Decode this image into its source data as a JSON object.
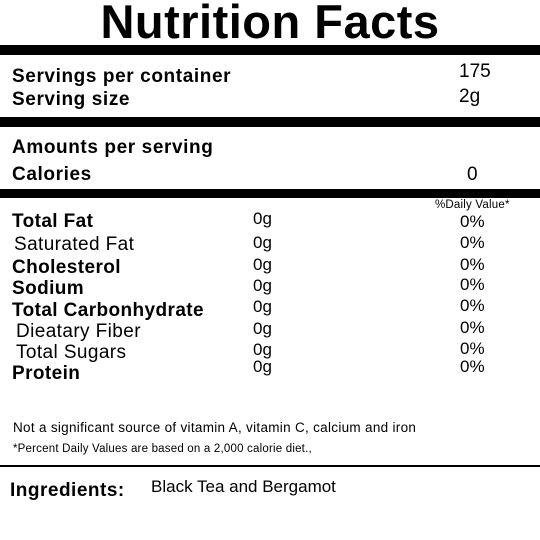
{
  "title": "Nutrition Facts",
  "servings": {
    "per_container_label": "Servings per container",
    "per_container_value": "175",
    "size_label": "Serving size",
    "size_value": "2g"
  },
  "amounts": {
    "header": "Amounts per serving",
    "calories_label": "Calories",
    "calories_value": "0"
  },
  "daily_value_header": "%Daily Value*",
  "nutrients": [
    {
      "name": "Total Fat",
      "amount": "0g",
      "dv": "0%"
    },
    {
      "name": "Saturated Fat",
      "amount": "0g",
      "dv": "0%"
    },
    {
      "name": "Cholesterol",
      "amount": "0g",
      "dv": "0%"
    },
    {
      "name": "Sodium",
      "amount": "0g",
      "dv": "0%"
    },
    {
      "name": "Total Carbonhydrate",
      "amount": "0g",
      "dv": "0%"
    },
    {
      "name": "Dieatary Fiber",
      "amount": "0g",
      "dv": "0%"
    },
    {
      "name": "Total Sugars",
      "amount": "0g",
      "dv": "0%"
    },
    {
      "name": "Protein",
      "amount": "0g",
      "dv": "0%"
    }
  ],
  "footnotes": {
    "vitamins": "Not a significant source of vitamin A, vitamin C, calcium and iron",
    "percent": "*Percent Daily Values are based on a 2,000 calorie diet.,"
  },
  "ingredients": {
    "label": "Ingredients:",
    "value": "Black Tea and Bergamot"
  }
}
